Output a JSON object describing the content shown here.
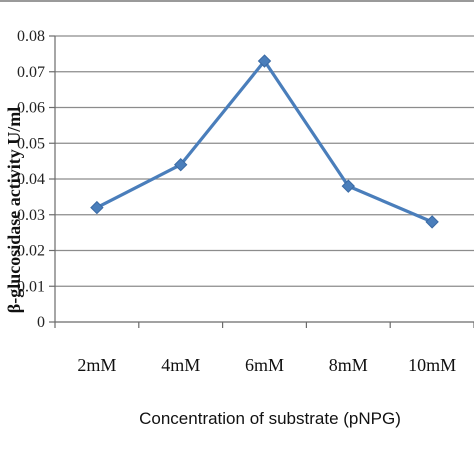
{
  "chart_data": {
    "type": "line",
    "title": "",
    "categories": [
      "2mM",
      "4mM",
      "6mM",
      "8mM",
      "10mM"
    ],
    "series": [
      {
        "values": [
          0.032,
          0.044,
          0.073,
          0.038,
          0.028
        ],
        "color": "#4a7ebb",
        "marker": "diamond"
      }
    ],
    "xlabel": "Concentration of  substrate (pNPG)",
    "ylabel": "β-glucosidase activity U/ml",
    "ylim": [
      0,
      0.08
    ],
    "yticks": [
      "0",
      "0.01",
      "0.02",
      "0.03",
      "0.04",
      "0.05",
      "0.06",
      "0.07",
      "0.08"
    ],
    "grid": true,
    "legend": "none",
    "gridline_color": "#8c8c8c",
    "axis_color": "#6b6b6b"
  }
}
